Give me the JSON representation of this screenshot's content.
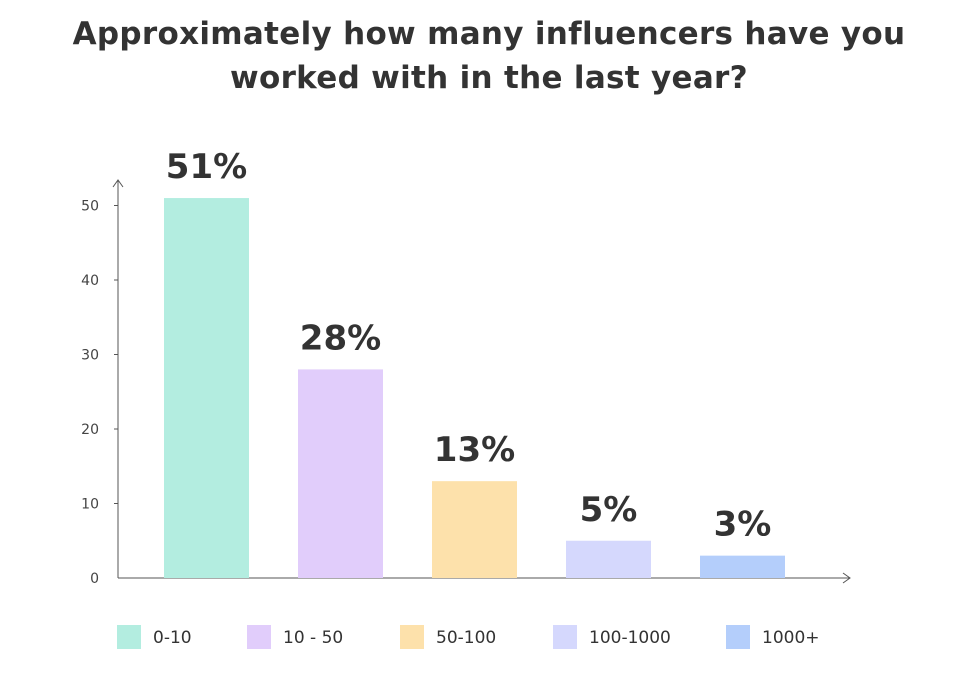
{
  "chart_data": {
    "type": "bar",
    "title_lines": [
      "Approximately how many influencers have you",
      "worked with in the last year?"
    ],
    "categories": [
      "0-10",
      "10 - 50",
      "50-100",
      "100-1000",
      "1000+"
    ],
    "values": [
      51,
      28,
      13,
      5,
      3
    ],
    "data_labels": [
      "51%",
      "28%",
      "13%",
      "5%",
      "3%"
    ],
    "colors": [
      "#b3ede0",
      "#e1cdfb",
      "#fde1ab",
      "#d5d8fd",
      "#b4cefb"
    ],
    "yticks": [
      0,
      10,
      20,
      30,
      40,
      50
    ],
    "ylim": [
      0,
      55
    ],
    "xlabel": "",
    "ylabel": "",
    "grid": false,
    "legend_position": "bottom"
  }
}
